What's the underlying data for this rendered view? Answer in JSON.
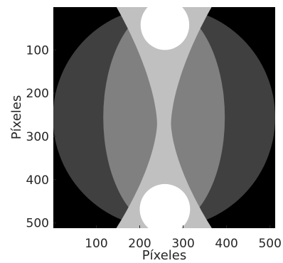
{
  "chart_data": {
    "type": "heatmap",
    "title": "",
    "xlabel": "Píxeles",
    "ylabel": "Píxeles",
    "xlim": [
      1,
      512
    ],
    "ylim": [
      512,
      1
    ],
    "y_axis_direction": "top-to-bottom",
    "xticks": [
      100,
      200,
      300,
      400,
      500
    ],
    "yticks": [
      100,
      200,
      300,
      400,
      500
    ],
    "colormap": "gray",
    "grid": false,
    "legend": "none",
    "background_value": 0,
    "image_size": [
      512,
      512
    ],
    "regions": [
      {
        "shape": "disk",
        "center": [
          256,
          256
        ],
        "radius": 256,
        "intensity": 0.25,
        "color": "#404040"
      },
      {
        "shape": "ellipse",
        "center": [
          256,
          256
        ],
        "semi_axes": [
          140,
          256
        ],
        "intensity": 0.5,
        "color": "#808080"
      },
      {
        "shape": "hourglass",
        "center_x": 256,
        "y_range": [
          0,
          512
        ],
        "half_width_at_ends": 110,
        "half_width_at_waist": 16,
        "waist_y": 270,
        "intensity": 0.75,
        "color": "#c0c0c0"
      },
      {
        "shape": "ellipse",
        "center": [
          258,
          42
        ],
        "semi_axes": [
          56,
          58
        ],
        "intensity": 1.0,
        "color": "#ffffff"
      },
      {
        "shape": "ellipse",
        "center": [
          258,
          468
        ],
        "semi_axes": [
          58,
          58
        ],
        "intensity": 1.0,
        "color": "#ffffff"
      }
    ]
  }
}
